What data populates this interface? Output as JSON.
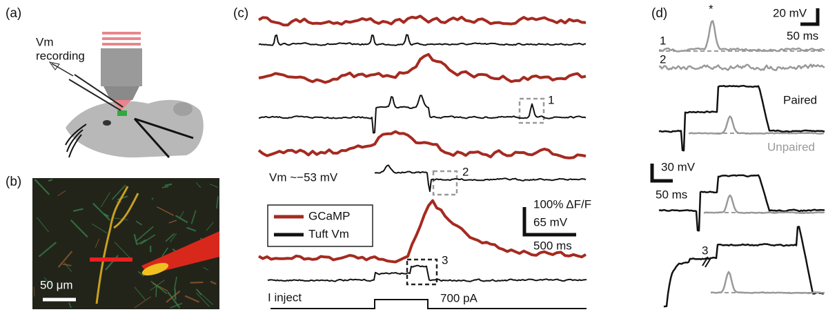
{
  "panels": [
    {
      "label": "(a)",
      "annotations": [
        "Vm",
        "recording"
      ]
    },
    {
      "label": "(b)",
      "scale_bar": "50 μm"
    },
    {
      "label": "(c)",
      "box_labels": [
        "1",
        "2",
        "3"
      ],
      "resting_potential": "Vm ~−53 mV",
      "legend": [
        "GCaMP",
        "Tuft Vm"
      ],
      "scale_bar": [
        "100% ΔF/F",
        "65 mV",
        "500 ms"
      ],
      "stimulus": [
        "I inject",
        "700 pA"
      ]
    },
    {
      "label": "(d)",
      "marker": "*",
      "scale_bar_top": [
        "20 mV",
        "50 ms"
      ],
      "trace_labels": [
        "1",
        "2"
      ],
      "conditions": [
        "Paired",
        "Unpaired"
      ],
      "scale_bar_bottom": [
        "30 mV",
        "50 ms"
      ],
      "trace_3_label": "3"
    }
  ]
}
